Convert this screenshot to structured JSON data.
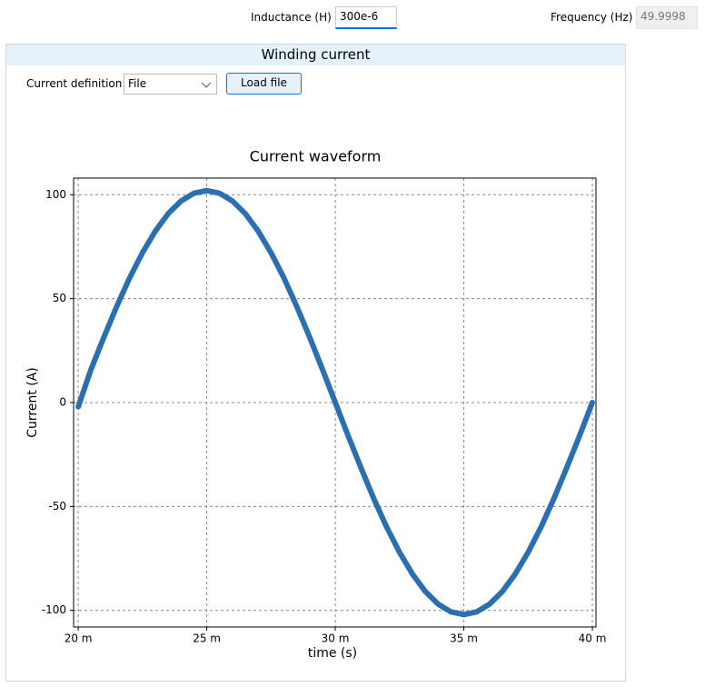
{
  "toolbar": {
    "inductance_label": "Inductance (H)",
    "inductance_value": "300e-6",
    "frequency_label": "Frequency (Hz)",
    "frequency_value": "49.9998"
  },
  "panel": {
    "title": "Winding current",
    "current_definition_label": "Current definition",
    "current_definition_value": "File",
    "load_button": "Load file"
  },
  "chart_data": {
    "type": "line",
    "title": "Current waveform",
    "x_label": "time (s)",
    "y_label": "Current (A)",
    "x": [
      0.02,
      0.0205,
      0.021,
      0.0215,
      0.022,
      0.0225,
      0.023,
      0.0235,
      0.024,
      0.0245,
      0.025,
      0.0255,
      0.026,
      0.0265,
      0.027,
      0.0275,
      0.028,
      0.0285,
      0.029,
      0.0295,
      0.03,
      0.0305,
      0.031,
      0.0315,
      0.032,
      0.0325,
      0.033,
      0.0335,
      0.034,
      0.0345,
      0.035,
      0.0355,
      0.036,
      0.0365,
      0.037,
      0.0375,
      0.038,
      0.0385,
      0.039,
      0.0395,
      0.04
    ],
    "series": [
      {
        "name": "Current",
        "color": "#2a6fb0",
        "values": [
          -2,
          16.0,
          31.5,
          46.3,
          60.0,
          72.1,
          82.5,
          90.9,
          97.0,
          100.7,
          102.0,
          100.7,
          97.0,
          90.9,
          82.5,
          72.1,
          60.0,
          46.3,
          31.5,
          16.0,
          0,
          -16.0,
          -31.5,
          -46.3,
          -60.0,
          -72.1,
          -82.5,
          -90.9,
          -97.0,
          -100.7,
          -102.0,
          -100.7,
          -97.0,
          -90.9,
          -82.5,
          -72.1,
          -60.0,
          -46.3,
          -31.5,
          -16.0,
          0
        ]
      }
    ],
    "xlim": [
      0.01982,
      0.04014
    ],
    "ylim": [
      -108,
      108
    ],
    "xticks": [
      {
        "value": 0.02,
        "label": "20 m"
      },
      {
        "value": 0.025,
        "label": "25 m"
      },
      {
        "value": 0.03,
        "label": "30 m"
      },
      {
        "value": 0.035,
        "label": "35 m"
      },
      {
        "value": 0.04,
        "label": "40 m"
      }
    ],
    "yticks": [
      -100,
      -50,
      0,
      50,
      100
    ],
    "grid": true
  }
}
